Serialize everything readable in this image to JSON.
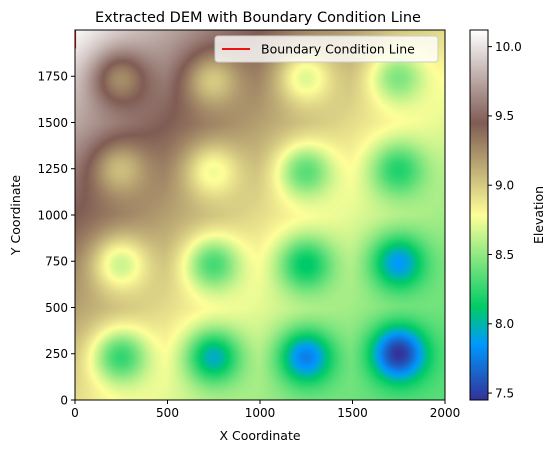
{
  "chart_data": {
    "type": "heatmap",
    "title": "Extracted DEM with Boundary Condition Line",
    "xlabel": "X Coordinate",
    "ylabel": "Y Coordinate",
    "xlim": [
      0,
      2000
    ],
    "ylim": [
      0,
      2000
    ],
    "xticks": [
      0,
      500,
      1000,
      1500,
      2000
    ],
    "yticks": [
      0,
      250,
      500,
      750,
      1000,
      1250,
      1500,
      1750
    ],
    "grid": false,
    "legend": {
      "placement": "top-right",
      "entries": [
        {
          "label": "Boundary Condition Line",
          "color": "#ee1111"
        }
      ]
    },
    "colorbar": {
      "label": "Elevation",
      "range": [
        7.45,
        10.12
      ],
      "ticks": [
        7.5,
        8.0,
        8.5,
        9.0,
        9.5,
        10.0
      ],
      "colormap": "terrain"
    },
    "surface": {
      "base_min": 8.35,
      "base_max": 10.1,
      "base_description": "Elevation rises from bottom-right toward top-left",
      "depressions": [
        {
          "x": 250,
          "y": 230,
          "elevation": 8.25
        },
        {
          "x": 750,
          "y": 230,
          "elevation": 7.95
        },
        {
          "x": 1250,
          "y": 230,
          "elevation": 7.75
        },
        {
          "x": 1750,
          "y": 250,
          "elevation": 7.45
        },
        {
          "x": 250,
          "y": 730,
          "elevation": 8.65
        },
        {
          "x": 750,
          "y": 730,
          "elevation": 8.3
        },
        {
          "x": 1250,
          "y": 730,
          "elevation": 8.1
        },
        {
          "x": 1750,
          "y": 740,
          "elevation": 7.85
        },
        {
          "x": 250,
          "y": 1240,
          "elevation": 9.05
        },
        {
          "x": 750,
          "y": 1230,
          "elevation": 8.75
        },
        {
          "x": 1250,
          "y": 1230,
          "elevation": 8.35
        },
        {
          "x": 1750,
          "y": 1240,
          "elevation": 8.2
        },
        {
          "x": 250,
          "y": 1730,
          "elevation": 9.25
        },
        {
          "x": 750,
          "y": 1720,
          "elevation": 9.0
        },
        {
          "x": 1250,
          "y": 1740,
          "elevation": 8.7
        },
        {
          "x": 1750,
          "y": 1740,
          "elevation": 8.45
        }
      ]
    },
    "boundary_line": {
      "x": [
        0,
        0
      ],
      "y": [
        1900,
        2000
      ],
      "color": "#ee1111"
    }
  }
}
